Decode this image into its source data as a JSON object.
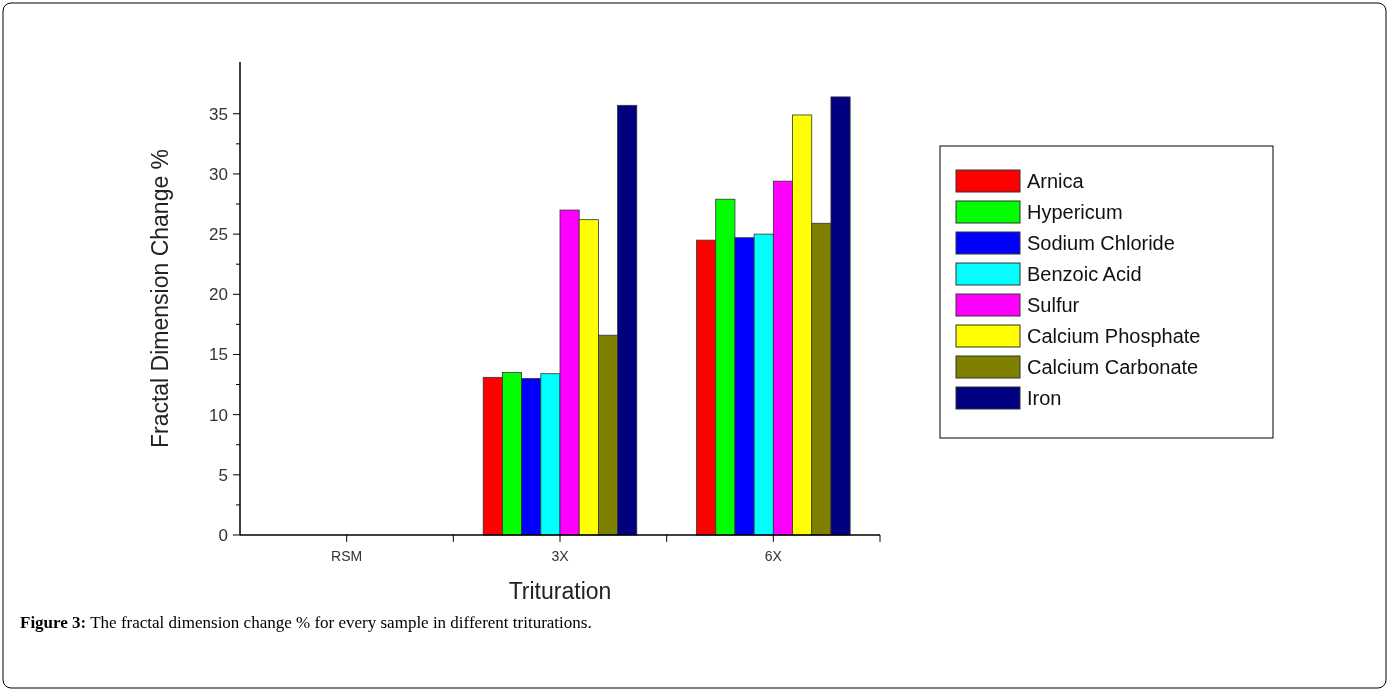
{
  "chart_data": {
    "type": "bar",
    "xlabel": "Trituration",
    "ylabel": "Fractal Dimension Change %",
    "categories": [
      "RSM",
      "3X",
      "6X"
    ],
    "series": [
      {
        "name": "Arnica",
        "color": "#ff0000",
        "values": [
          0,
          13.1,
          24.5
        ]
      },
      {
        "name": "Hypericum",
        "color": "#00ff00",
        "values": [
          0,
          13.5,
          27.9
        ]
      },
      {
        "name": "Sodium Chloride",
        "color": "#0000ff",
        "values": [
          0,
          13.0,
          24.7
        ]
      },
      {
        "name": "Benzoic Acid",
        "color": "#00ffff",
        "values": [
          0,
          13.4,
          25.0
        ]
      },
      {
        "name": "Sulfur",
        "color": "#ff00ff",
        "values": [
          0,
          27.0,
          29.4
        ]
      },
      {
        "name": "Calcium Phosphate",
        "color": "#ffff00",
        "values": [
          0,
          26.2,
          34.9
        ]
      },
      {
        "name": "Calcium Carbonate",
        "color": "#808000",
        "values": [
          0,
          16.6,
          25.9
        ]
      },
      {
        "name": "Iron",
        "color": "#000080",
        "values": [
          0,
          35.7,
          36.4
        ]
      }
    ],
    "ylim": [
      0,
      39.3
    ],
    "yticks": [
      0,
      5,
      10,
      15,
      20,
      25,
      30,
      35
    ],
    "legend": "right",
    "annotations": [
      "Figure 3: The fractal dimension change % for every sample in different triturations."
    ]
  }
}
